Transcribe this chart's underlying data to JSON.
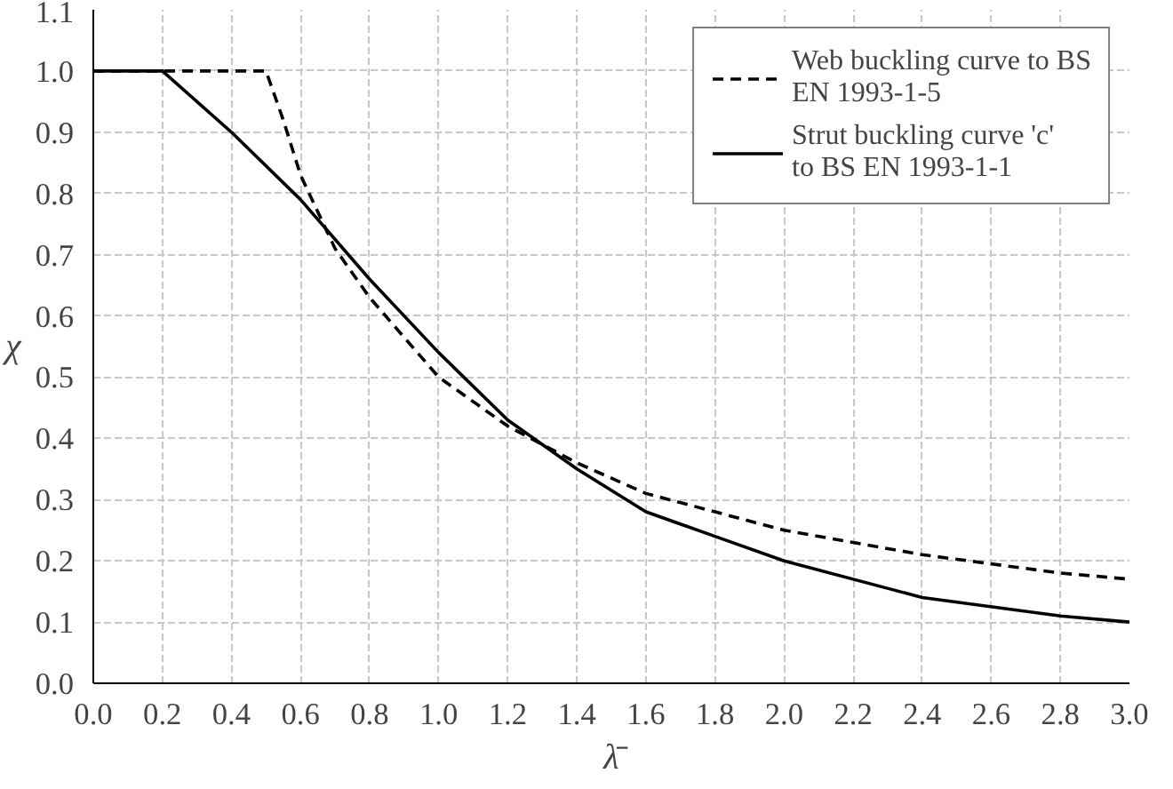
{
  "chart_data": {
    "type": "line",
    "xlabel": "λ̄",
    "ylabel": "χ",
    "xlim": [
      0,
      3.0
    ],
    "ylim": [
      0,
      1.1
    ],
    "xticks": [
      {
        "value": 0,
        "label": "0.0"
      },
      {
        "value": 0.2,
        "label": "0.2"
      },
      {
        "value": 0.4,
        "label": "0.4"
      },
      {
        "value": 0.6,
        "label": "0.6"
      },
      {
        "value": 0.8,
        "label": "0.8"
      },
      {
        "value": 1.0,
        "label": "1.0"
      },
      {
        "value": 1.2,
        "label": "1.2"
      },
      {
        "value": 1.4,
        "label": "1.4"
      },
      {
        "value": 1.6,
        "label": "1.6"
      },
      {
        "value": 1.8,
        "label": "1.8"
      },
      {
        "value": 2.0,
        "label": "2.0"
      },
      {
        "value": 2.2,
        "label": "2.2"
      },
      {
        "value": 2.4,
        "label": "2.4"
      },
      {
        "value": 2.6,
        "label": "2.6"
      },
      {
        "value": 2.8,
        "label": "2.8"
      },
      {
        "value": 3.0,
        "label": "3.0"
      }
    ],
    "yticks": [
      {
        "value": 0,
        "label": "0.0"
      },
      {
        "value": 0.1,
        "label": "0.1"
      },
      {
        "value": 0.2,
        "label": "0.2"
      },
      {
        "value": 0.3,
        "label": "0.3"
      },
      {
        "value": 0.4,
        "label": "0.4"
      },
      {
        "value": 0.5,
        "label": "0.5"
      },
      {
        "value": 0.6,
        "label": "0.6"
      },
      {
        "value": 0.7,
        "label": "0.7"
      },
      {
        "value": 0.8,
        "label": "0.8"
      },
      {
        "value": 0.9,
        "label": "0.9"
      },
      {
        "value": 1.0,
        "label": "1.0"
      },
      {
        "value": 1.1,
        "label": "1.1"
      }
    ],
    "grid": true,
    "legend": "top right",
    "marker": "none",
    "series": [
      {
        "name": "Web buckling curve to BS EN 1993-1-5",
        "color": "#000000",
        "line_style": "dashed",
        "x": [
          0,
          0.5,
          0.55,
          0.6,
          0.7,
          0.8,
          1.0,
          1.2,
          1.4,
          1.6,
          1.8,
          2.0,
          2.4,
          2.8,
          3.0
        ],
        "values": [
          1.0,
          1.0,
          0.92,
          0.83,
          0.71,
          0.63,
          0.5,
          0.42,
          0.36,
          0.31,
          0.28,
          0.25,
          0.21,
          0.18,
          0.17
        ]
      },
      {
        "name": "Strut buckling curve 'c' to BS EN 1993-1-1",
        "color": "#000000",
        "line_style": "solid",
        "x": [
          0,
          0.2,
          0.4,
          0.6,
          0.8,
          1.0,
          1.2,
          1.4,
          1.6,
          1.8,
          2.0,
          2.4,
          2.8,
          3.0
        ],
        "values": [
          1.0,
          1.0,
          0.9,
          0.79,
          0.66,
          0.54,
          0.43,
          0.35,
          0.28,
          0.24,
          0.2,
          0.14,
          0.11,
          0.1
        ]
      }
    ]
  }
}
